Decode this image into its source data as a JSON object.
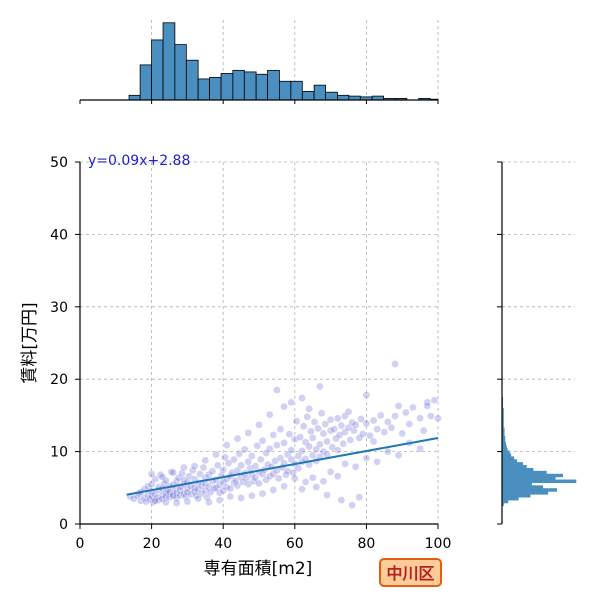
{
  "chart_data": {
    "type": "scatter",
    "xlabel": "専有面積[m2]",
    "ylabel": "賃料[万円]",
    "xlim": [
      0,
      100
    ],
    "ylim": [
      0,
      50
    ],
    "xticks": [
      0,
      20,
      40,
      60,
      80,
      100
    ],
    "yticks": [
      0,
      10,
      20,
      30,
      40,
      50
    ],
    "grid": true,
    "annotation": "y=0.09x+2.88",
    "badge": "中川区",
    "regression": {
      "slope": 0.09,
      "intercept": 2.88,
      "x_range": [
        13,
        100
      ]
    },
    "colors": {
      "points": "#5b5bd6",
      "bars": "#4a8fc0",
      "line": "#1f77b4",
      "equation": "#2020c8",
      "badge_fill": "#ffcc99",
      "badge_border": "#e0600f",
      "badge_text": "#b22222"
    },
    "x_histogram": {
      "bin_edges": [
        0,
        2,
        4,
        6,
        8,
        10,
        12,
        14,
        16,
        18,
        20,
        22,
        24,
        26,
        28,
        30,
        32,
        34,
        36,
        38,
        40,
        42,
        44,
        46,
        48,
        50,
        52,
        54,
        56,
        58,
        60,
        62,
        64,
        66,
        68,
        70,
        72,
        74,
        76,
        78,
        80,
        82,
        84,
        86,
        88,
        90,
        92,
        94,
        96,
        98,
        100
      ],
      "counts": [
        0,
        0,
        0,
        0,
        0,
        0,
        0,
        0,
        0,
        1,
        3,
        4,
        5,
        3,
        2,
        2,
        2,
        2,
        2,
        2,
        2,
        2,
        1,
        1,
        1,
        1,
        0,
        0,
        0,
        0,
        0,
        0,
        0,
        0,
        0,
        0,
        0,
        0,
        0,
        0,
        0,
        0,
        0,
        0,
        0,
        0,
        0,
        0,
        0,
        0
      ],
      "bars": [
        {
          "x0": 13.7,
          "x1": 16.8,
          "h": 0.06
        },
        {
          "x0": 16.8,
          "x1": 20.0,
          "h": 0.45
        },
        {
          "x0": 20.0,
          "x1": 23.2,
          "h": 0.77
        },
        {
          "x0": 23.2,
          "x1": 26.5,
          "h": 0.99
        },
        {
          "x0": 26.5,
          "x1": 29.7,
          "h": 0.71
        },
        {
          "x0": 29.7,
          "x1": 33.0,
          "h": 0.51
        },
        {
          "x0": 33.0,
          "x1": 36.2,
          "h": 0.27
        },
        {
          "x0": 36.2,
          "x1": 39.4,
          "h": 0.29
        },
        {
          "x0": 39.4,
          "x1": 42.7,
          "h": 0.34
        },
        {
          "x0": 42.7,
          "x1": 45.9,
          "h": 0.38
        },
        {
          "x0": 45.9,
          "x1": 49.2,
          "h": 0.36
        },
        {
          "x0": 49.2,
          "x1": 52.4,
          "h": 0.33
        },
        {
          "x0": 52.4,
          "x1": 55.7,
          "h": 0.38
        },
        {
          "x0": 55.7,
          "x1": 58.9,
          "h": 0.24
        },
        {
          "x0": 58.9,
          "x1": 62.1,
          "h": 0.24
        },
        {
          "x0": 62.1,
          "x1": 65.4,
          "h": 0.11
        },
        {
          "x0": 65.4,
          "x1": 68.6,
          "h": 0.19
        },
        {
          "x0": 68.6,
          "x1": 71.9,
          "h": 0.1
        },
        {
          "x0": 71.9,
          "x1": 75.1,
          "h": 0.06
        },
        {
          "x0": 75.1,
          "x1": 78.3,
          "h": 0.05
        },
        {
          "x0": 78.3,
          "x1": 81.6,
          "h": 0.04
        },
        {
          "x0": 81.6,
          "x1": 84.8,
          "h": 0.05
        },
        {
          "x0": 84.8,
          "x1": 88.1,
          "h": 0.02
        },
        {
          "x0": 88.1,
          "x1": 91.3,
          "h": 0.02
        },
        {
          "x0": 91.3,
          "x1": 94.6,
          "h": 0.0
        },
        {
          "x0": 94.6,
          "x1": 97.8,
          "h": 0.02
        },
        {
          "x0": 97.8,
          "x1": 100.0,
          "h": 0.01
        }
      ]
    },
    "y_histogram": {
      "bars": [
        {
          "y0": 2.5,
          "y1": 2.9,
          "w": 0.02
        },
        {
          "y0": 2.9,
          "y1": 3.3,
          "w": 0.08
        },
        {
          "y0": 3.3,
          "y1": 3.7,
          "w": 0.22
        },
        {
          "y0": 3.7,
          "y1": 4.1,
          "w": 0.38
        },
        {
          "y0": 4.1,
          "y1": 4.5,
          "w": 0.62
        },
        {
          "y0": 4.5,
          "y1": 4.9,
          "w": 0.74
        },
        {
          "y0": 4.9,
          "y1": 5.3,
          "w": 0.55
        },
        {
          "y0": 5.3,
          "y1": 5.7,
          "w": 0.4
        },
        {
          "y0": 5.7,
          "y1": 6.1,
          "w": 1.0
        },
        {
          "y0": 6.1,
          "y1": 6.5,
          "w": 0.72
        },
        {
          "y0": 6.5,
          "y1": 6.9,
          "w": 0.82
        },
        {
          "y0": 6.9,
          "y1": 7.3,
          "w": 0.6
        },
        {
          "y0": 7.3,
          "y1": 7.7,
          "w": 0.42
        },
        {
          "y0": 7.7,
          "y1": 8.1,
          "w": 0.33
        },
        {
          "y0": 8.1,
          "y1": 8.5,
          "w": 0.28
        },
        {
          "y0": 8.5,
          "y1": 8.9,
          "w": 0.2
        },
        {
          "y0": 8.9,
          "y1": 9.3,
          "w": 0.16
        },
        {
          "y0": 9.3,
          "y1": 9.7,
          "w": 0.12
        },
        {
          "y0": 9.7,
          "y1": 10.1,
          "w": 0.1
        },
        {
          "y0": 10.1,
          "y1": 10.5,
          "w": 0.07
        },
        {
          "y0": 10.5,
          "y1": 10.9,
          "w": 0.06
        },
        {
          "y0": 10.9,
          "y1": 11.3,
          "w": 0.05
        },
        {
          "y0": 11.3,
          "y1": 11.7,
          "w": 0.04
        },
        {
          "y0": 11.7,
          "y1": 12.1,
          "w": 0.04
        },
        {
          "y0": 12.1,
          "y1": 12.5,
          "w": 0.03
        },
        {
          "y0": 12.5,
          "y1": 13.3,
          "w": 0.03
        },
        {
          "y0": 13.3,
          "y1": 14.5,
          "w": 0.02
        },
        {
          "y0": 14.5,
          "y1": 16.0,
          "w": 0.02
        },
        {
          "y0": 16.0,
          "y1": 17.5,
          "w": 0.01
        }
      ]
    },
    "points": [
      [
        14,
        3.8
      ],
      [
        15,
        3.5
      ],
      [
        16,
        3.9
      ],
      [
        16.5,
        4.2
      ],
      [
        17,
        3.2
      ],
      [
        17,
        4.4
      ],
      [
        18,
        3.6
      ],
      [
        18,
        4.8
      ],
      [
        18.5,
        3.1
      ],
      [
        19,
        5.2
      ],
      [
        19,
        4.0
      ],
      [
        19.5,
        3.4
      ],
      [
        20,
        3.8
      ],
      [
        20,
        4.5
      ],
      [
        20,
        5.5
      ],
      [
        20.5,
        3.0
      ],
      [
        21,
        4.1
      ],
      [
        21,
        6.2
      ],
      [
        21.5,
        3.6
      ],
      [
        22,
        4.7
      ],
      [
        22,
        5.1
      ],
      [
        22,
        3.3
      ],
      [
        22.5,
        6.8
      ],
      [
        23,
        4.0
      ],
      [
        23,
        4.9
      ],
      [
        23,
        3.5
      ],
      [
        23.5,
        5.6
      ],
      [
        24,
        4.3
      ],
      [
        24,
        6.0
      ],
      [
        24,
        3.8
      ],
      [
        24.5,
        4.6
      ],
      [
        25,
        5.2
      ],
      [
        25,
        3.7
      ],
      [
        25,
        4.4
      ],
      [
        25.5,
        7.2
      ],
      [
        26,
        4.1
      ],
      [
        26,
        5.4
      ],
      [
        26,
        3.9
      ],
      [
        26.5,
        4.8
      ],
      [
        27,
        5.9
      ],
      [
        27,
        4.3
      ],
      [
        27,
        3.6
      ],
      [
        27.5,
        6.4
      ],
      [
        28,
        4.7
      ],
      [
        28,
        5.1
      ],
      [
        28,
        4.0
      ],
      [
        28.5,
        7.0
      ],
      [
        29,
        5.5
      ],
      [
        29,
        4.2
      ],
      [
        29,
        6.1
      ],
      [
        29.5,
        3.8
      ],
      [
        30,
        4.9
      ],
      [
        30,
        5.8
      ],
      [
        30,
        4.4
      ],
      [
        30.5,
        6.6
      ],
      [
        31,
        5.2
      ],
      [
        31,
        4.1
      ],
      [
        31.5,
        7.4
      ],
      [
        32,
        5.0
      ],
      [
        32,
        4.5
      ],
      [
        32,
        6.2
      ],
      [
        32.5,
        3.9
      ],
      [
        33,
        5.7
      ],
      [
        33,
        4.8
      ],
      [
        33.5,
        6.9
      ],
      [
        34,
        5.3
      ],
      [
        34,
        4.2
      ],
      [
        34.5,
        7.8
      ],
      [
        35,
        5.6
      ],
      [
        35,
        4.6
      ],
      [
        35,
        6.4
      ],
      [
        35.5,
        3.7
      ],
      [
        36,
        5.1
      ],
      [
        36,
        6.8
      ],
      [
        36.5,
        4.4
      ],
      [
        37,
        5.9
      ],
      [
        37,
        7.3
      ],
      [
        37.5,
        4.9
      ],
      [
        38,
        6.1
      ],
      [
        38,
        5.0
      ],
      [
        38.5,
        8.1
      ],
      [
        39,
        5.4
      ],
      [
        39,
        4.3
      ],
      [
        39.5,
        6.7
      ],
      [
        40,
        5.8
      ],
      [
        40,
        7.5
      ],
      [
        40,
        4.6
      ],
      [
        40.5,
        9.2
      ],
      [
        41,
        6.2
      ],
      [
        41,
        5.1
      ],
      [
        41.5,
        8.4
      ],
      [
        42,
        6.6
      ],
      [
        42,
        4.9
      ],
      [
        42.5,
        7.1
      ],
      [
        43,
        5.7
      ],
      [
        43,
        8.9
      ],
      [
        43.5,
        6.0
      ],
      [
        44,
        7.4
      ],
      [
        44,
        5.3
      ],
      [
        44.5,
        9.7
      ],
      [
        45,
        6.5
      ],
      [
        45,
        8.1
      ],
      [
        45.5,
        5.8
      ],
      [
        46,
        7.0
      ],
      [
        46,
        10.3
      ],
      [
        46.5,
        6.3
      ],
      [
        47,
        8.6
      ],
      [
        47,
        5.5
      ],
      [
        47.5,
        7.7
      ],
      [
        48,
        6.8
      ],
      [
        48,
        9.4
      ],
      [
        48.5,
        5.9
      ],
      [
        49,
        8.0
      ],
      [
        49,
        6.4
      ],
      [
        49.5,
        10.8
      ],
      [
        50,
        7.2
      ],
      [
        50,
        5.6
      ],
      [
        50.5,
        8.9
      ],
      [
        51,
        6.9
      ],
      [
        51,
        11.5
      ],
      [
        51.5,
        7.5
      ],
      [
        52,
        6.1
      ],
      [
        52,
        9.8
      ],
      [
        52.5,
        8.2
      ],
      [
        53,
        6.6
      ],
      [
        53,
        10.4
      ],
      [
        53.5,
        7.9
      ],
      [
        54,
        12.3
      ],
      [
        54,
        6.9
      ],
      [
        54.5,
        8.7
      ],
      [
        55,
        7.4
      ],
      [
        55,
        10.9
      ],
      [
        55.5,
        6.3
      ],
      [
        56,
        9.1
      ],
      [
        56,
        13.1
      ],
      [
        56.5,
        7.8
      ],
      [
        57,
        8.4
      ],
      [
        57,
        11.2
      ],
      [
        57.5,
        6.8
      ],
      [
        58,
        9.6
      ],
      [
        58,
        7.3
      ],
      [
        58.5,
        12.4
      ],
      [
        59,
        8.9
      ],
      [
        59,
        10.2
      ],
      [
        59.5,
        7.1
      ],
      [
        60,
        11.7
      ],
      [
        60,
        8.3
      ],
      [
        60.5,
        14.2
      ],
      [
        61,
        9.4
      ],
      [
        61,
        7.7
      ],
      [
        61.5,
        12.0
      ],
      [
        62,
        10.1
      ],
      [
        62,
        8.6
      ],
      [
        62.5,
        13.5
      ],
      [
        63,
        9.0
      ],
      [
        63,
        11.3
      ],
      [
        63.5,
        14.8
      ],
      [
        64,
        8.2
      ],
      [
        64,
        10.7
      ],
      [
        64.5,
        12.8
      ],
      [
        65,
        9.5
      ],
      [
        65,
        11.9
      ],
      [
        65.5,
        14.1
      ],
      [
        66,
        10.3
      ],
      [
        66,
        8.7
      ],
      [
        66.5,
        13.2
      ],
      [
        67,
        11.0
      ],
      [
        67,
        9.3
      ],
      [
        67.5,
        15.3
      ],
      [
        68,
        12.5
      ],
      [
        68,
        10.0
      ],
      [
        68.5,
        13.8
      ],
      [
        69,
        11.4
      ],
      [
        69,
        9.6
      ],
      [
        70,
        12.9
      ],
      [
        70,
        14.4
      ],
      [
        70.5,
        10.6
      ],
      [
        71,
        13.1
      ],
      [
        71.5,
        11.8
      ],
      [
        72,
        14.6
      ],
      [
        72,
        10.2
      ],
      [
        72.5,
        12.3
      ],
      [
        73,
        13.6
      ],
      [
        73.5,
        11.1
      ],
      [
        74,
        14.9
      ],
      [
        74,
        12.7
      ],
      [
        75,
        13.3
      ],
      [
        75,
        15.5
      ],
      [
        75.5,
        11.6
      ],
      [
        76,
        14.0
      ],
      [
        76.5,
        12.9
      ],
      [
        77,
        13.7
      ],
      [
        78,
        3.7
      ],
      [
        78,
        11.9
      ],
      [
        78.5,
        14.5
      ],
      [
        79,
        12.4
      ],
      [
        80,
        13.9
      ],
      [
        80,
        17.8
      ],
      [
        81,
        12.2
      ],
      [
        82,
        14.3
      ],
      [
        82,
        11.4
      ],
      [
        83,
        13.1
      ],
      [
        84,
        15.0
      ],
      [
        85,
        12.7
      ],
      [
        86,
        14.1
      ],
      [
        87,
        13.3
      ],
      [
        88,
        22.1
      ],
      [
        88,
        14.9
      ],
      [
        89,
        16.3
      ],
      [
        90,
        12.5
      ],
      [
        91,
        15.4
      ],
      [
        92,
        13.8
      ],
      [
        93,
        16.1
      ],
      [
        95,
        14.6
      ],
      [
        96,
        12.9
      ],
      [
        97,
        16.8
      ],
      [
        97,
        16.3
      ],
      [
        98,
        14.9
      ],
      [
        99,
        17.1
      ],
      [
        100,
        14.6
      ],
      [
        76,
        2.6
      ],
      [
        73,
        3.3
      ],
      [
        69,
        4.0
      ],
      [
        66,
        5.1
      ],
      [
        63,
        5.8
      ],
      [
        60,
        6.3
      ],
      [
        57,
        5.2
      ],
      [
        54,
        4.7
      ],
      [
        51,
        4.2
      ],
      [
        48,
        3.9
      ],
      [
        45,
        3.6
      ],
      [
        42,
        3.8
      ],
      [
        39,
        3.3
      ],
      [
        36,
        3.0
      ],
      [
        33,
        3.5
      ],
      [
        30,
        3.1
      ],
      [
        27,
        2.9
      ],
      [
        24,
        3.0
      ],
      [
        21,
        3.2
      ],
      [
        67,
        19.0
      ],
      [
        55,
        18.5
      ],
      [
        59,
        16.8
      ],
      [
        62,
        17.4
      ],
      [
        64,
        15.9
      ],
      [
        57,
        16.2
      ],
      [
        53,
        15.1
      ],
      [
        50,
        13.7
      ],
      [
        47,
        12.6
      ],
      [
        44,
        11.8
      ],
      [
        41,
        10.9
      ],
      [
        38,
        9.6
      ],
      [
        35,
        8.8
      ],
      [
        32,
        8.0
      ],
      [
        29,
        7.8
      ],
      [
        26,
        7.1
      ],
      [
        23,
        6.5
      ],
      [
        20,
        6.9
      ],
      [
        62,
        4.8
      ],
      [
        65,
        6.4
      ],
      [
        68,
        5.9
      ],
      [
        70,
        7.2
      ],
      [
        72,
        6.6
      ],
      [
        74,
        8.3
      ],
      [
        77,
        7.9
      ],
      [
        80,
        9.1
      ],
      [
        83,
        8.6
      ],
      [
        86,
        10.0
      ],
      [
        89,
        9.5
      ],
      [
        92,
        11.2
      ],
      [
        95,
        10.4
      ]
    ]
  }
}
